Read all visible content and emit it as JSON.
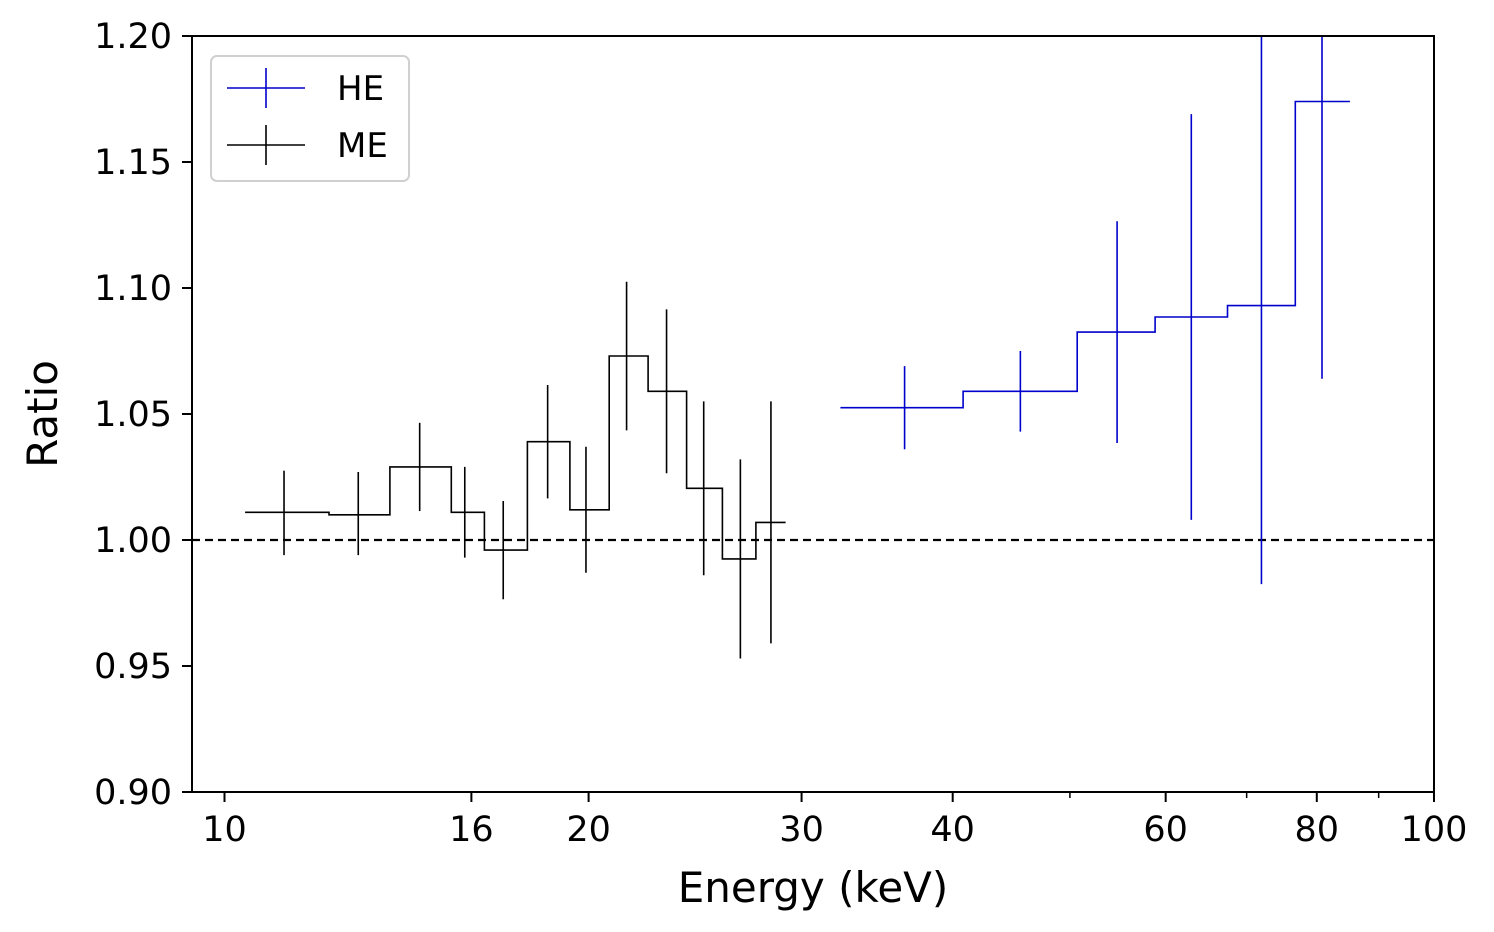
{
  "chart_data": {
    "type": "scatter",
    "title": "",
    "xlabel": "Energy (keV)",
    "ylabel": "Ratio",
    "x_scale": "log",
    "xlim": [
      9.4,
      100
    ],
    "ylim": [
      0.9,
      1.2
    ],
    "x_major_ticks": [
      10,
      16,
      20,
      30,
      40,
      60,
      80,
      100
    ],
    "x_minor_ticks": [
      50,
      70,
      90
    ],
    "y_ticks": [
      0.9,
      0.95,
      1.0,
      1.05,
      1.1,
      1.15,
      1.2
    ],
    "x_tick_labels": [
      "10",
      "16",
      "20",
      "30",
      "40",
      "60",
      "80",
      "100"
    ],
    "y_tick_labels": [
      "0.90",
      "0.95",
      "1.00",
      "1.05",
      "1.10",
      "1.15",
      "1.20"
    ],
    "reference_line": {
      "y": 1.0,
      "style": "dashed",
      "color": "#000000"
    },
    "grid": false,
    "legend_position": "top-left",
    "series": [
      {
        "name": "HE",
        "color": "#0000cc",
        "points": [
          {
            "x": 36.5,
            "xlo": 32.3,
            "xhi": 40.8,
            "y": 1.0525,
            "yerr_lo": 0.0165,
            "yerr_hi": 0.0165
          },
          {
            "x": 45.5,
            "xlo": 40.8,
            "xhi": 50.7,
            "y": 1.059,
            "yerr_lo": 0.016,
            "yerr_hi": 0.016
          },
          {
            "x": 54.7,
            "xlo": 50.7,
            "xhi": 58.8,
            "y": 1.0825,
            "yerr_lo": 0.044,
            "yerr_hi": 0.044
          },
          {
            "x": 63.0,
            "xlo": 58.8,
            "xhi": 67.5,
            "y": 1.0885,
            "yerr_lo": 0.0805,
            "yerr_hi": 0.0805
          },
          {
            "x": 72.0,
            "xlo": 67.5,
            "xhi": 76.8,
            "y": 1.093,
            "yerr_lo": 0.1105,
            "yerr_hi": 0.11
          },
          {
            "x": 80.8,
            "xlo": 76.8,
            "xhi": 85.2,
            "y": 1.174,
            "yerr_lo": 0.11,
            "yerr_hi": 0.11
          }
        ]
      },
      {
        "name": "ME",
        "color": "#000000",
        "points": [
          {
            "x": 11.2,
            "xlo": 10.4,
            "xhi": 12.2,
            "y": 1.011,
            "yerr_lo": 0.017,
            "yerr_hi": 0.0165
          },
          {
            "x": 12.9,
            "xlo": 12.2,
            "xhi": 13.7,
            "y": 1.01,
            "yerr_lo": 0.016,
            "yerr_hi": 0.017
          },
          {
            "x": 14.5,
            "xlo": 13.7,
            "xhi": 15.4,
            "y": 1.029,
            "yerr_lo": 0.0175,
            "yerr_hi": 0.0175
          },
          {
            "x": 15.8,
            "xlo": 15.4,
            "xhi": 16.4,
            "y": 1.011,
            "yerr_lo": 0.018,
            "yerr_hi": 0.018
          },
          {
            "x": 17.0,
            "xlo": 16.4,
            "xhi": 17.8,
            "y": 0.996,
            "yerr_lo": 0.0195,
            "yerr_hi": 0.0195
          },
          {
            "x": 18.5,
            "xlo": 17.8,
            "xhi": 19.3,
            "y": 1.039,
            "yerr_lo": 0.0225,
            "yerr_hi": 0.0225
          },
          {
            "x": 19.9,
            "xlo": 19.3,
            "xhi": 20.8,
            "y": 1.012,
            "yerr_lo": 0.025,
            "yerr_hi": 0.025
          },
          {
            "x": 21.5,
            "xlo": 20.8,
            "xhi": 22.4,
            "y": 1.073,
            "yerr_lo": 0.0295,
            "yerr_hi": 0.0295
          },
          {
            "x": 23.2,
            "xlo": 22.4,
            "xhi": 24.1,
            "y": 1.059,
            "yerr_lo": 0.0325,
            "yerr_hi": 0.0325
          },
          {
            "x": 24.9,
            "xlo": 24.1,
            "xhi": 25.8,
            "y": 1.0205,
            "yerr_lo": 0.0345,
            "yerr_hi": 0.0345
          },
          {
            "x": 26.7,
            "xlo": 25.8,
            "xhi": 27.5,
            "y": 0.9925,
            "yerr_lo": 0.0395,
            "yerr_hi": 0.0395
          },
          {
            "x": 28.3,
            "xlo": 27.5,
            "xhi": 29.1,
            "y": 1.007,
            "yerr_lo": 0.048,
            "yerr_hi": 0.048
          }
        ]
      }
    ]
  }
}
